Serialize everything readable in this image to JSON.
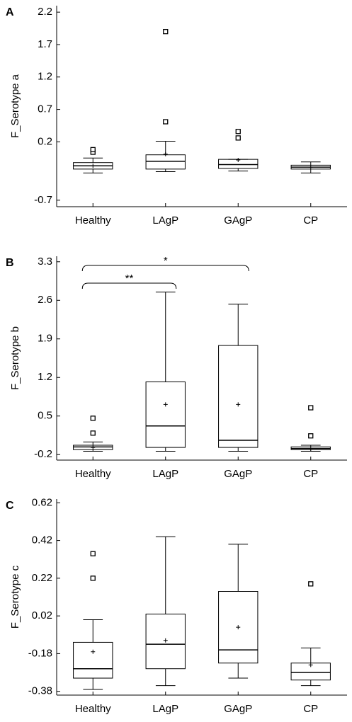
{
  "chart_data": [
    {
      "type": "box",
      "panel": "A",
      "ylabel": "F_Serotype a",
      "categories": [
        "Healthy",
        "LAgP",
        "GAgP",
        "CP"
      ],
      "boxes": [
        {
          "whislo": -0.28,
          "q1": -0.22,
          "med": -0.17,
          "q3": -0.12,
          "whishi": -0.05,
          "mean": -0.17,
          "outliers": [
            0.04,
            0.08
          ]
        },
        {
          "whislo": -0.26,
          "q1": -0.22,
          "med": -0.1,
          "q3": 0.0,
          "whishi": 0.21,
          "mean": 0.01,
          "outliers": [
            0.51,
            1.9
          ]
        },
        {
          "whislo": -0.25,
          "q1": -0.21,
          "med": -0.15,
          "q3": -0.07,
          "whishi": -0.07,
          "mean": -0.08,
          "outliers": [
            0.26,
            0.36
          ]
        },
        {
          "whislo": -0.28,
          "q1": -0.22,
          "med": -0.19,
          "q3": -0.16,
          "whishi": -0.11,
          "mean": -0.19,
          "outliers": []
        }
      ],
      "ylim": [
        -0.8,
        2.3
      ],
      "yticks": [
        2.2,
        1.7,
        1.2,
        0.7,
        0.2,
        -0.7
      ]
    },
    {
      "type": "box",
      "panel": "B",
      "ylabel": "F_Serotype b",
      "categories": [
        "Healthy",
        "LAgP",
        "GAgP",
        "CP"
      ],
      "boxes": [
        {
          "whislo": -0.14,
          "q1": -0.11,
          "med": -0.06,
          "q3": -0.03,
          "whishi": 0.03,
          "mean": -0.07,
          "outliers": [
            0.19,
            0.46
          ]
        },
        {
          "whislo": -0.14,
          "q1": -0.07,
          "med": 0.32,
          "q3": 1.12,
          "whishi": 2.75,
          "mean": 0.71,
          "outliers": []
        },
        {
          "whislo": -0.14,
          "q1": -0.07,
          "med": 0.06,
          "q3": 1.78,
          "whishi": 2.53,
          "mean": 0.71,
          "outliers": []
        },
        {
          "whislo": -0.14,
          "q1": -0.11,
          "med": -0.09,
          "q3": -0.06,
          "whishi": -0.03,
          "mean": -0.09,
          "outliers": [
            0.14,
            0.65
          ]
        }
      ],
      "annotations": [
        {
          "text": "**",
          "between": [
            0,
            1
          ]
        },
        {
          "text": "*",
          "between": [
            0,
            2
          ]
        }
      ],
      "ylim": [
        -0.3,
        3.4
      ],
      "yticks": [
        3.3,
        2.6,
        1.9,
        1.2,
        0.5,
        -0.2
      ]
    },
    {
      "type": "box",
      "panel": "C",
      "ylabel": "F_Serotype c",
      "categories": [
        "Healthy",
        "LAgP",
        "GAgP",
        "CP"
      ],
      "boxes": [
        {
          "whislo": -0.37,
          "q1": -0.31,
          "med": -0.26,
          "q3": -0.12,
          "whishi": 0.0,
          "mean": -0.17,
          "outliers": [
            0.22,
            0.35
          ]
        },
        {
          "whislo": -0.35,
          "q1": -0.26,
          "med": -0.13,
          "q3": 0.03,
          "whishi": 0.44,
          "mean": -0.11,
          "outliers": []
        },
        {
          "whislo": -0.31,
          "q1": -0.23,
          "med": -0.16,
          "q3": 0.15,
          "whishi": 0.4,
          "mean": -0.04,
          "outliers": []
        },
        {
          "whislo": -0.35,
          "q1": -0.32,
          "med": -0.28,
          "q3": -0.23,
          "whishi": -0.15,
          "mean": -0.24,
          "outliers": [
            0.19
          ]
        }
      ],
      "ylim": [
        -0.4,
        0.64
      ],
      "yticks": [
        0.62,
        0.42,
        0.22,
        0.02,
        -0.18,
        -0.38
      ]
    }
  ]
}
